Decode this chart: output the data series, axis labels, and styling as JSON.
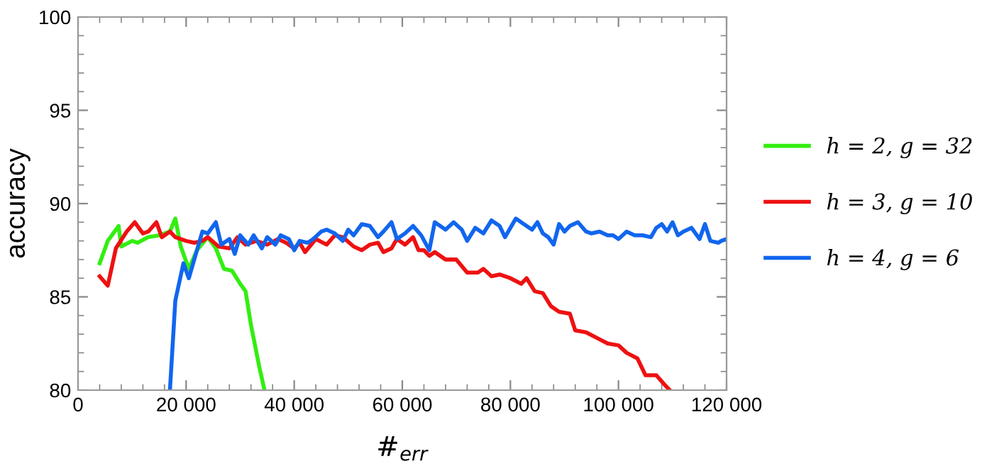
{
  "chart_data": {
    "type": "line",
    "xlabel": "#$_{err}$",
    "ylabel": "accuracy",
    "xlim": [
      0,
      120000
    ],
    "ylim": [
      80,
      100
    ],
    "xticks": [
      0,
      {
        "value": 20000,
        "label": "20 000"
      },
      {
        "value": 40000,
        "label": "40 000"
      },
      {
        "value": 60000,
        "label": "60 000"
      },
      {
        "value": 80000,
        "label": "80 000"
      },
      {
        "value": 100000,
        "label": "100 000"
      },
      {
        "value": 120000,
        "label": "120 000"
      }
    ],
    "yticks": [
      80,
      85,
      90,
      95,
      100
    ],
    "grid": false,
    "legend": "right",
    "marker": "none",
    "line_style": "solid",
    "series": [
      {
        "name": "h = 2, g = 32",
        "color": "#33ee11",
        "x": [
          4000,
          5500,
          7500,
          8000,
          10000,
          11000,
          13000,
          15000,
          17000,
          18000,
          19000,
          20500,
          22000,
          24000,
          25500,
          27000,
          28500,
          30000,
          31000,
          32000,
          33500,
          34500
        ],
        "values": [
          86.8,
          88.0,
          88.8,
          87.7,
          88.0,
          87.9,
          88.2,
          88.3,
          88.5,
          89.2,
          87.7,
          86.5,
          87.5,
          88.2,
          87.6,
          86.5,
          86.4,
          85.7,
          85.3,
          83.5,
          81.3,
          80
        ]
      },
      {
        "name": "h = 3, g = 10",
        "color": "#ee1111",
        "x": [
          4000,
          5500,
          7000,
          9000,
          10500,
          12000,
          13000,
          14500,
          15500,
          17000,
          18000,
          20000,
          21500,
          23000,
          24000,
          26000,
          28000,
          29500,
          31000,
          33000,
          35000,
          37000,
          38500,
          40000,
          41000,
          42000,
          44000,
          46000,
          47500,
          49000,
          51000,
          52500,
          54000,
          55500,
          56500,
          58000,
          59000,
          60500,
          62000,
          63000,
          64000,
          65000,
          66000,
          68000,
          70000,
          72000,
          74000,
          75000,
          76500,
          78000,
          80000,
          82000,
          83000,
          84500,
          86000,
          87500,
          89000,
          91000,
          92000,
          94000,
          96000,
          98000,
          100000,
          101500,
          103500,
          105000,
          107000,
          108500,
          109500
        ],
        "values": [
          86.1,
          85.6,
          87.6,
          88.5,
          89.0,
          88.4,
          88.5,
          89.0,
          88.2,
          88.5,
          88.2,
          88.0,
          87.9,
          88.0,
          88.2,
          87.7,
          87.6,
          88.2,
          87.8,
          88.0,
          87.8,
          88.1,
          87.9,
          87.6,
          87.9,
          87.4,
          88.1,
          87.8,
          88.3,
          88.2,
          87.7,
          87.5,
          87.8,
          87.9,
          87.4,
          87.6,
          88.1,
          87.8,
          88.2,
          87.5,
          87.5,
          87.2,
          87.4,
          87.0,
          87.0,
          86.3,
          86.3,
          86.5,
          86.1,
          86.2,
          86.0,
          85.7,
          86.0,
          85.3,
          85.2,
          84.5,
          84.2,
          84.1,
          83.2,
          83.1,
          82.8,
          82.5,
          82.4,
          82.0,
          81.7,
          80.8,
          80.8,
          80.3,
          80
        ]
      },
      {
        "name": "h = 4, g = 6",
        "color": "#1166ee",
        "x": [
          17000,
          18000,
          19500,
          20500,
          22000,
          23000,
          24000,
          25500,
          26500,
          28000,
          29000,
          30000,
          31500,
          32500,
          34000,
          35000,
          36500,
          37500,
          39000,
          40000,
          41000,
          42500,
          43500,
          45000,
          46000,
          47500,
          49000,
          50000,
          51000,
          52500,
          54000,
          55500,
          56500,
          58000,
          59000,
          60500,
          62000,
          63500,
          65000,
          66000,
          68000,
          69500,
          71000,
          72000,
          73500,
          75000,
          76500,
          78000,
          79000,
          81000,
          82500,
          84000,
          85000,
          86000,
          87000,
          88000,
          89000,
          90000,
          91000,
          92500,
          94000,
          95000,
          96500,
          98000,
          99000,
          100000,
          101500,
          103000,
          104500,
          106000,
          107000,
          108000,
          109000,
          110000,
          111000,
          112000,
          113500,
          115000,
          116000,
          117000,
          118500,
          119000,
          120000
        ],
        "values": [
          80,
          84.8,
          86.8,
          86.0,
          87.5,
          88.5,
          88.4,
          89.0,
          87.8,
          88.1,
          87.3,
          88.3,
          87.8,
          88.3,
          87.6,
          88.2,
          87.8,
          88.3,
          88.1,
          87.5,
          88.0,
          87.9,
          88.1,
          88.5,
          88.6,
          88.4,
          88.0,
          88.6,
          88.3,
          88.9,
          88.8,
          88.2,
          88.5,
          89.0,
          88.1,
          88.4,
          88.8,
          88.3,
          87.5,
          89.0,
          88.6,
          89.0,
          88.6,
          88.0,
          88.7,
          88.4,
          89.1,
          88.8,
          88.2,
          89.2,
          88.9,
          88.6,
          89.0,
          88.4,
          88.2,
          87.8,
          88.9,
          88.5,
          88.8,
          89.0,
          88.5,
          88.4,
          88.5,
          88.3,
          88.3,
          88.1,
          88.5,
          88.3,
          88.3,
          88.2,
          88.7,
          88.9,
          88.5,
          89.0,
          88.3,
          88.5,
          88.7,
          88.1,
          88.9,
          88.0,
          87.9,
          88.0,
          88.1
        ]
      }
    ]
  }
}
